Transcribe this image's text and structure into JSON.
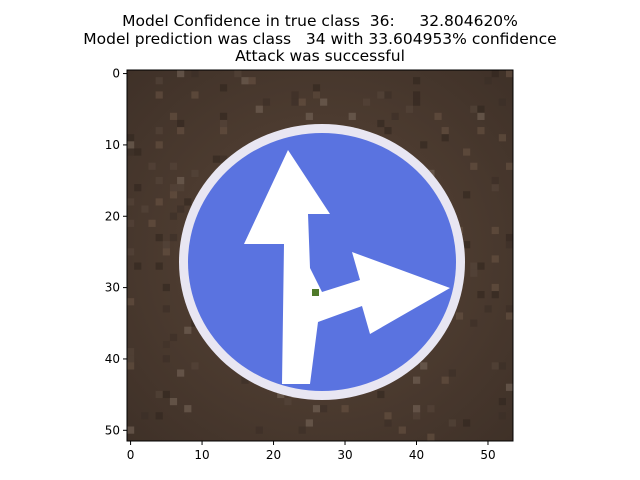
{
  "figure": {
    "title_lines": [
      "Model Confidence in true class  36:     32.804620%",
      "Model prediction was class   34 with 33.604953% confidence",
      "Attack was successful"
    ]
  },
  "image_axes": {
    "x_ticks": [
      "0",
      "10",
      "20",
      "30",
      "40",
      "50"
    ],
    "y_ticks": [
      "0",
      "10",
      "20",
      "30",
      "40",
      "50"
    ],
    "x_tick_values": [
      0,
      10,
      20,
      30,
      40,
      50
    ],
    "y_tick_values": [
      0,
      10,
      20,
      30,
      40,
      50
    ],
    "x_range": [
      -0.5,
      53.5
    ],
    "y_range": [
      -0.5,
      51.5
    ]
  },
  "image": {
    "subject": "blue circular traffic sign with white arrows pointing straight and right",
    "colors": {
      "background": "#4a3a30",
      "sign_blue": "#5a73e0",
      "sign_border": "#e8e6f2",
      "arrow": "#ffffff",
      "marker": "#4f7a2a"
    }
  }
}
